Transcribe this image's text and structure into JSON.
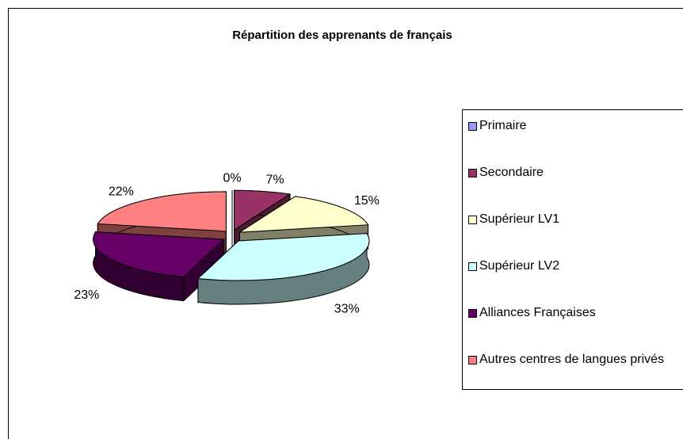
{
  "chart_data": {
    "type": "pie",
    "title": "Répartition des apprenants de français",
    "categories": [
      "Primaire",
      "Secondaire",
      "Supérieur LV1",
      "Supérieur LV2",
      "Alliances Françaises",
      "Autres centres de langues privés"
    ],
    "values": [
      0,
      7,
      15,
      33,
      23,
      22
    ],
    "value_labels": [
      "0%",
      "7%",
      "15%",
      "33%",
      "23%",
      "22%"
    ],
    "colors": [
      "#9999ff",
      "#993366",
      "#ffffcc",
      "#ccffff",
      "#660066",
      "#ff8080"
    ],
    "legend": "right"
  }
}
